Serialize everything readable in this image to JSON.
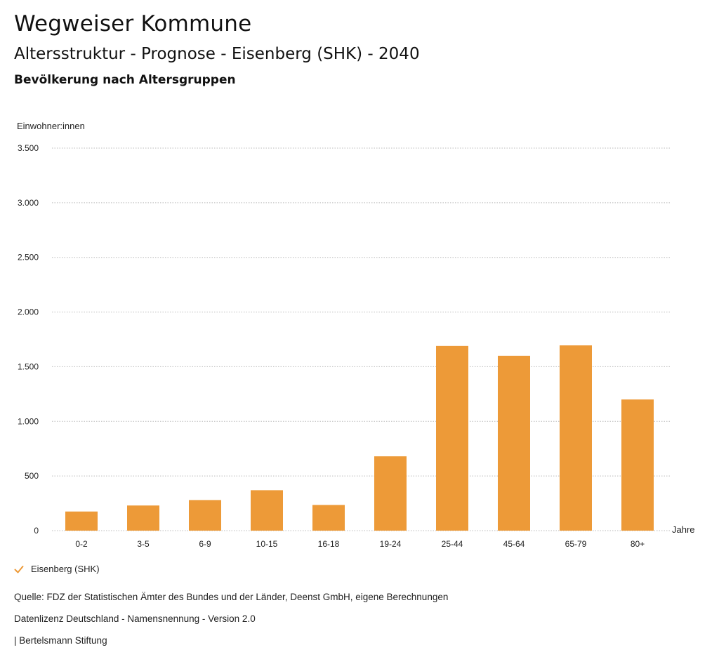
{
  "header": {
    "title": "Wegweiser Kommune",
    "subtitle": "Altersstruktur - Prognose - Eisenberg (SHK) - 2040"
  },
  "colors": {
    "bar": "#ED9A38",
    "grid": "#BBBBBB",
    "check": "#ED9A38"
  },
  "chart_data": {
    "type": "bar",
    "title": "Bevölkerung nach Altersgruppen",
    "ylabel": "Einwohner:innen",
    "xlabel": "Jahre",
    "ylim": [
      0,
      3500
    ],
    "yticks": [
      0,
      500,
      1000,
      1500,
      2000,
      2500,
      3000,
      3500
    ],
    "ytick_labels": [
      "0",
      "500",
      "1.000",
      "1.500",
      "2.000",
      "2.500",
      "3.000",
      "3.500"
    ],
    "grid": true,
    "categories": [
      "0-2",
      "3-5",
      "6-9",
      "10-15",
      "16-18",
      "19-24",
      "25-44",
      "45-64",
      "65-79",
      "80+"
    ],
    "series": [
      {
        "name": "Eisenberg (SHK)",
        "values": [
          175,
          230,
          280,
          370,
          235,
          680,
          1690,
          1600,
          1695,
          1200
        ]
      }
    ],
    "legend_position": "bottom-left"
  },
  "legend": {
    "label": "Eisenberg (SHK)"
  },
  "footer": {
    "source": "Quelle: FDZ der Statistischen Ämter des Bundes und der Länder, Deenst GmbH, eigene Berechnungen",
    "license": "Datenlizenz Deutschland - Namensnennung - Version 2.0",
    "publisher": "| Bertelsmann Stiftung"
  }
}
